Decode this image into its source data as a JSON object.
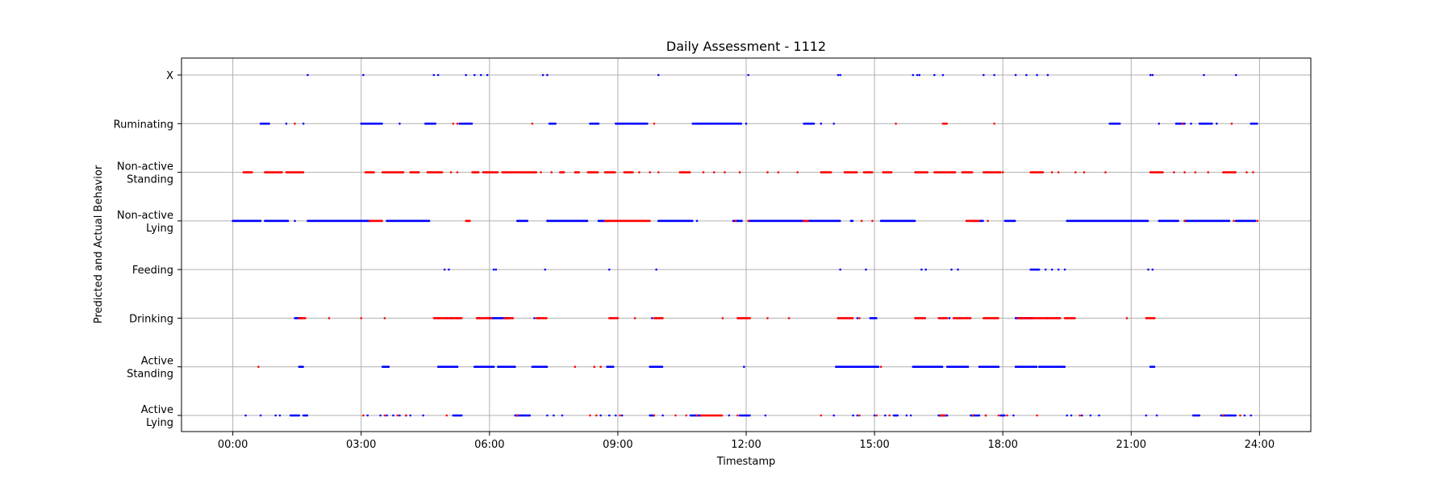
{
  "chart_data": {
    "type": "scatter",
    "title": "Daily Assessment - 1112",
    "xlabel": "Timestamp",
    "ylabel": "Predicted and Actual Behavior",
    "xlim": [
      -1.2,
      25.2
    ],
    "x_unit": "hours",
    "x_ticks": [
      0,
      3,
      6,
      9,
      12,
      15,
      18,
      21,
      24
    ],
    "x_tick_labels": [
      "00:00",
      "03:00",
      "06:00",
      "09:00",
      "12:00",
      "15:00",
      "18:00",
      "21:00",
      "24:00"
    ],
    "categories": [
      [
        "Active",
        "Lying"
      ],
      [
        "Active",
        "Standing"
      ],
      [
        "Drinking"
      ],
      [
        "Feeding"
      ],
      [
        "Non-active",
        "Lying"
      ],
      [
        "Non-active",
        "Standing"
      ],
      [
        "Ruminating"
      ],
      [
        "X"
      ]
    ],
    "grid": true,
    "series": [
      {
        "color": "#0000ff",
        "points": {
          "X": [
            1.75,
            3.05,
            4.7,
            4.8,
            5.45,
            5.65,
            5.8,
            5.95,
            7.25,
            7.35,
            9.95,
            12.05,
            14.15,
            14.2,
            15.9,
            16.0,
            16.05,
            16.4,
            16.6,
            17.55,
            17.8,
            18.3,
            18.55,
            18.8,
            19.05,
            21.45,
            21.5,
            22.7,
            23.45
          ],
          "Ruminating": [
            [
              0.65,
              0.85
            ],
            1.25,
            1.65,
            [
              3.0,
              3.5
            ],
            3.9,
            [
              4.5,
              4.75
            ],
            [
              5.3,
              5.6
            ],
            [
              7.4,
              7.55
            ],
            [
              8.35,
              8.55
            ],
            [
              8.95,
              9.7
            ],
            [
              10.75,
              11.9
            ],
            12.0,
            [
              13.35,
              13.6
            ],
            13.75,
            14.05,
            [
              20.5,
              20.75
            ],
            21.65,
            [
              22.05,
              22.25
            ],
            22.4,
            [
              22.6,
              22.9
            ],
            23.0,
            [
              23.8,
              23.95
            ]
          ],
          "Non-active Lying": [
            [
              0.0,
              0.65
            ],
            [
              0.75,
              1.3
            ],
            1.45,
            [
              1.75,
              3.25
            ],
            [
              3.6,
              4.6
            ],
            [
              6.65,
              6.9
            ],
            [
              7.35,
              8.3
            ],
            [
              8.55,
              8.8
            ],
            [
              9.95,
              10.75
            ],
            10.85,
            [
              11.7,
              11.9
            ],
            [
              12.05,
              14.2
            ],
            [
              14.45,
              14.5
            ],
            [
              15.15,
              15.95
            ],
            [
              17.3,
              17.55
            ],
            [
              18.05,
              18.3
            ],
            [
              19.5,
              21.4
            ],
            [
              21.65,
              22.1
            ],
            [
              22.25,
              23.3
            ],
            [
              23.45,
              23.9
            ]
          ],
          "Feeding": [
            4.95,
            5.05,
            6.1,
            6.15,
            7.3,
            8.8,
            9.9,
            14.2,
            14.8,
            16.1,
            16.2,
            16.8,
            16.95,
            [
              18.65,
              18.85
            ],
            19.0,
            19.15,
            19.3,
            19.45,
            21.4,
            21.5
          ],
          "Drinking": [
            [
              1.45,
              1.6
            ],
            4.8,
            5.0,
            5.1,
            5.25,
            5.75,
            [
              6.0,
              6.45
            ],
            7.05,
            7.15,
            8.85,
            9.8,
            9.9,
            14.15,
            14.6,
            [
              14.9,
              15.05
            ],
            16.6,
            16.75,
            17.0,
            17.8,
            [
              18.3,
              18.7
            ],
            19.05
          ],
          "Active Standing": [
            [
              1.55,
              1.65
            ],
            [
              3.5,
              3.65
            ],
            [
              4.8,
              5.25
            ],
            [
              5.65,
              6.1
            ],
            [
              6.2,
              6.6
            ],
            [
              7.0,
              7.35
            ],
            [
              8.75,
              8.9
            ],
            [
              9.75,
              10.05
            ],
            11.95,
            [
              14.1,
              15.1
            ],
            [
              15.9,
              16.6
            ],
            [
              16.7,
              17.2
            ],
            [
              17.45,
              17.9
            ],
            [
              18.3,
              18.8
            ],
            [
              18.85,
              19.45
            ],
            [
              21.45,
              21.55
            ]
          ],
          "Active Lying": [
            0.3,
            0.65,
            1.0,
            1.1,
            [
              1.35,
              1.55
            ],
            [
              1.65,
              1.75
            ],
            3.15,
            3.45,
            3.6,
            3.75,
            3.9,
            4.05,
            4.15,
            4.45,
            [
              5.15,
              5.35
            ],
            [
              6.6,
              6.95
            ],
            7.35,
            7.5,
            7.7,
            8.6,
            8.8,
            8.95,
            9.1,
            [
              9.75,
              9.85
            ],
            10.05,
            [
              10.7,
              10.95
            ],
            11.6,
            [
              11.85,
              12.1
            ],
            12.45,
            14.05,
            14.5,
            14.6,
            15.0,
            15.25,
            [
              15.45,
              15.55
            ],
            15.75,
            15.85,
            [
              16.5,
              16.7
            ],
            [
              17.25,
              17.45
            ],
            17.6,
            [
              17.95,
              18.05
            ],
            18.25,
            19.5,
            19.6,
            19.85,
            20.05,
            20.25,
            21.35,
            21.6,
            [
              22.45,
              22.6
            ],
            [
              23.1,
              23.45
            ],
            23.65,
            23.8
          ]
        }
      },
      {
        "color": "#ff0000",
        "points": {
          "Ruminating": [
            1.45,
            5.15,
            5.25,
            7.0,
            9.85,
            15.5,
            [
              16.6,
              16.7
            ],
            17.8,
            22.2,
            23.35
          ],
          "Non-active Standing": [
            [
              0.25,
              0.45
            ],
            [
              0.75,
              1.15
            ],
            [
              1.25,
              1.65
            ],
            [
              3.1,
              3.3
            ],
            [
              3.5,
              4.0
            ],
            [
              4.15,
              4.35
            ],
            [
              4.55,
              4.9
            ],
            5.1,
            5.25,
            [
              5.6,
              5.75
            ],
            [
              5.85,
              6.2
            ],
            [
              6.3,
              7.1
            ],
            7.2,
            7.45,
            [
              7.65,
              7.75
            ],
            [
              8.0,
              8.1
            ],
            [
              8.3,
              8.55
            ],
            [
              8.7,
              8.95
            ],
            [
              9.15,
              9.35
            ],
            9.5,
            9.75,
            9.95,
            [
              10.45,
              10.7
            ],
            11.0,
            11.25,
            11.5,
            11.85,
            12.5,
            12.75,
            13.2,
            [
              13.75,
              14.0
            ],
            [
              14.3,
              14.6
            ],
            [
              14.75,
              14.95
            ],
            [
              15.2,
              15.4
            ],
            [
              15.95,
              16.25
            ],
            [
              16.4,
              16.9
            ],
            [
              17.05,
              17.3
            ],
            [
              17.55,
              17.95
            ],
            18.0,
            [
              18.65,
              18.95
            ],
            19.15,
            19.3,
            19.7,
            19.9,
            20.4,
            [
              21.45,
              21.75
            ],
            22.0,
            22.25,
            22.5,
            22.8,
            [
              23.15,
              23.45
            ],
            23.7,
            23.85
          ],
          "Non-active Lying": [
            [
              3.2,
              3.5
            ],
            [
              5.45,
              5.55
            ],
            [
              8.7,
              9.75
            ],
            11.75,
            12.05,
            [
              13.35,
              13.45
            ],
            14.7,
            14.95,
            [
              17.15,
              17.45
            ],
            17.65,
            22.25,
            23.4,
            23.95
          ],
          "Drinking": [
            [
              1.55,
              1.7
            ],
            2.25,
            3.0,
            3.55,
            [
              4.7,
              5.35
            ],
            [
              5.7,
              6.05
            ],
            [
              6.35,
              6.55
            ],
            [
              7.1,
              7.35
            ],
            [
              8.8,
              9.0
            ],
            9.4,
            [
              9.85,
              10.05
            ],
            11.45,
            [
              11.8,
              12.1
            ],
            12.5,
            13.0,
            [
              14.15,
              14.5
            ],
            14.65,
            [
              15.95,
              16.2
            ],
            [
              16.5,
              16.7
            ],
            [
              16.85,
              17.25
            ],
            [
              17.55,
              17.9
            ],
            [
              18.35,
              19.35
            ],
            [
              19.45,
              19.7
            ],
            20.9,
            [
              21.35,
              21.55
            ]
          ],
          "Active Standing": [
            0.6,
            8.0,
            8.45,
            8.6,
            15.15
          ],
          "Active Lying": [
            3.05,
            3.55,
            3.85,
            4.05,
            5.0,
            6.65,
            8.35,
            8.5,
            9.05,
            9.85,
            10.35,
            10.6,
            10.85,
            [
              10.95,
              11.45
            ],
            11.8,
            13.75,
            14.65,
            15.05,
            15.35,
            [
              16.55,
              16.65
            ],
            17.3,
            17.6,
            17.9,
            18.1,
            18.8,
            19.8,
            23.15,
            23.55
          ]
        }
      }
    ]
  }
}
